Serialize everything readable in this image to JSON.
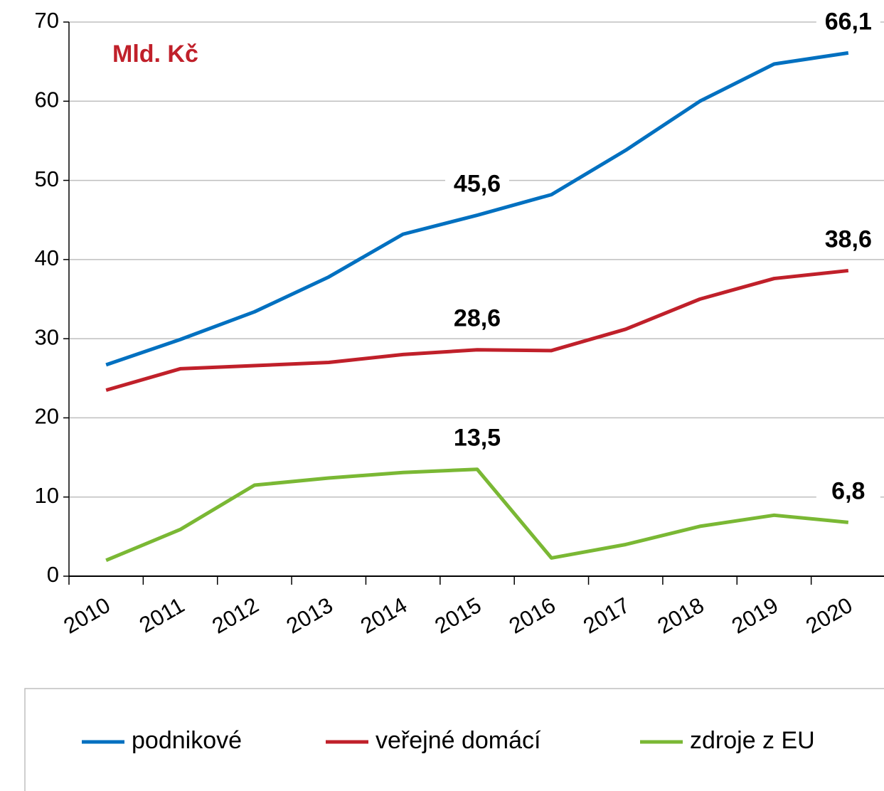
{
  "chart_data": {
    "type": "line",
    "subtitle": "Mld. Kč",
    "categories": [
      "2010",
      "2011",
      "2012",
      "2013",
      "2014",
      "2015",
      "2016",
      "2017",
      "2018",
      "2019",
      "2020"
    ],
    "series": [
      {
        "name": "podnikové",
        "color": "#0070c0",
        "values": [
          26.7,
          29.9,
          33.4,
          37.8,
          43.2,
          45.6,
          48.2,
          53.8,
          60.0,
          64.7,
          66.1
        ],
        "value_labels": [
          null,
          null,
          null,
          null,
          null,
          "45,6",
          null,
          null,
          null,
          null,
          "66,1"
        ]
      },
      {
        "name": "veřejné domácí",
        "color": "#c0202a",
        "values": [
          23.5,
          26.2,
          26.6,
          27.0,
          28.0,
          28.6,
          28.5,
          31.2,
          35.0,
          37.6,
          38.6
        ],
        "value_labels": [
          null,
          null,
          null,
          null,
          null,
          "28,6",
          null,
          null,
          null,
          null,
          "38,6"
        ]
      },
      {
        "name": "zdroje z EU",
        "color": "#7ab834",
        "values": [
          2.0,
          5.9,
          11.5,
          12.4,
          13.1,
          13.5,
          2.3,
          4.0,
          6.3,
          7.7,
          6.8
        ],
        "value_labels": [
          null,
          null,
          null,
          null,
          null,
          "13,5",
          null,
          null,
          null,
          null,
          "6,8"
        ]
      }
    ],
    "ylim": [
      0,
      70
    ],
    "yticks": [
      0,
      10,
      20,
      30,
      40,
      50,
      60,
      70
    ],
    "grid": true,
    "legend": "bottom"
  }
}
